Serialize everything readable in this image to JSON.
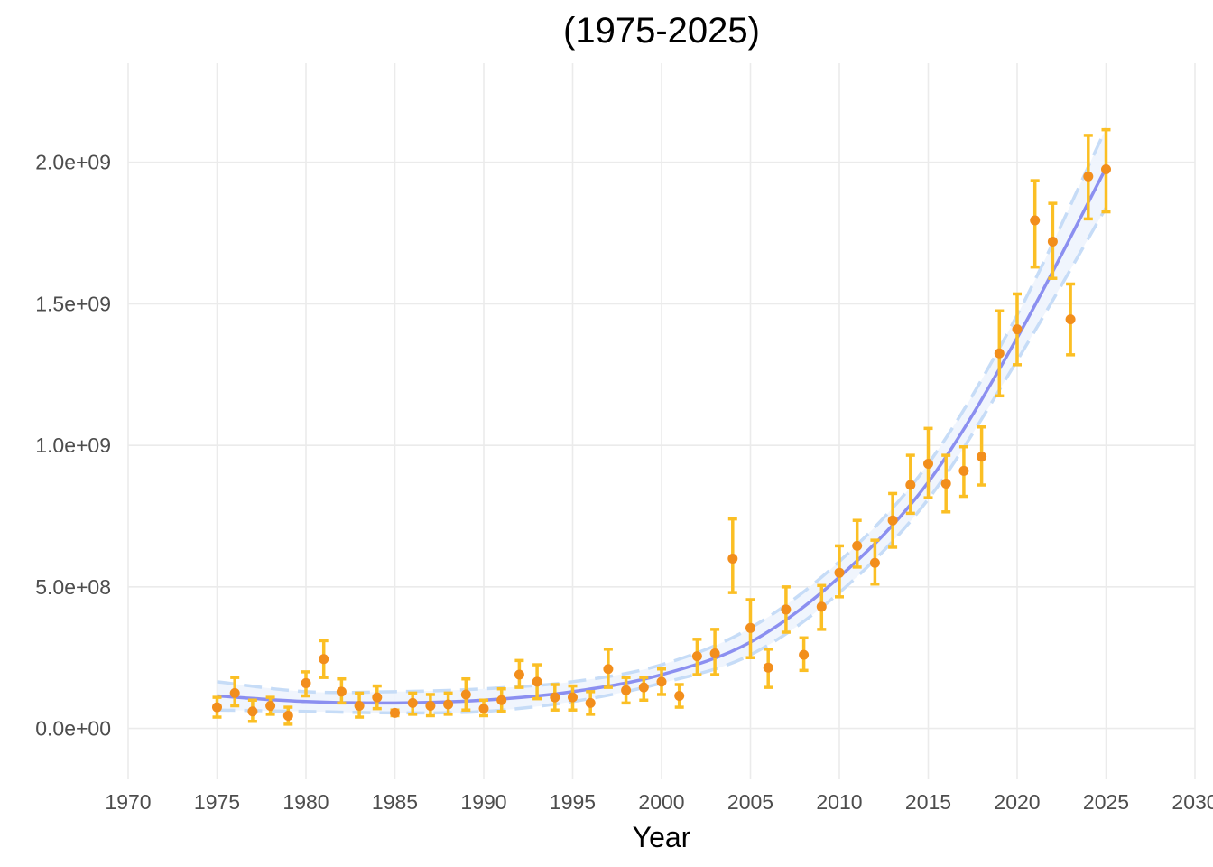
{
  "chart_data": {
    "type": "scatter",
    "title": "(1975-2025)",
    "xlabel": "Year",
    "ylabel": "",
    "xlim": [
      1970,
      2030
    ],
    "ylim": [
      -180000000.0,
      2350000000.0
    ],
    "x_ticks": [
      1970,
      1975,
      1980,
      1985,
      1990,
      1995,
      2000,
      2005,
      2010,
      2015,
      2020,
      2025,
      2030
    ],
    "x_tick_labels": [
      "1970",
      "1975",
      "1980",
      "1985",
      "1990",
      "1995",
      "2000",
      "2005",
      "2010",
      "2015",
      "2020",
      "2025",
      "2030"
    ],
    "y_ticks": [
      0,
      500000000,
      1000000000,
      1500000000,
      2000000000
    ],
    "y_tick_labels": [
      "0.0e+00",
      "5.0e+08",
      "1.0e+09",
      "1.5e+09",
      "2.0e+09"
    ],
    "grid": true,
    "colors": {
      "points": "#f28e1c",
      "error_bars": "#fbbf24",
      "fit_line": "#8b8ff0",
      "confidence_band": "#eef4fd",
      "band_edges": "#c6dcf7"
    },
    "observations": {
      "x": [
        1975,
        1976,
        1977,
        1978,
        1979,
        1980,
        1981,
        1982,
        1983,
        1984,
        1985,
        1986,
        1987,
        1988,
        1989,
        1990,
        1991,
        1992,
        1993,
        1994,
        1995,
        1996,
        1997,
        1998,
        1999,
        2000,
        2001,
        2002,
        2003,
        2004,
        2005,
        2006,
        2007,
        2008,
        2009,
        2010,
        2011,
        2012,
        2013,
        2014,
        2015,
        2016,
        2017,
        2018,
        2019,
        2020,
        2021,
        2022,
        2023,
        2024,
        2025
      ],
      "y": [
        75000000,
        125000000,
        60000000,
        80000000,
        45000000,
        160000000,
        245000000,
        130000000,
        80000000,
        110000000,
        55000000,
        90000000,
        80000000,
        85000000,
        120000000,
        70000000,
        100000000,
        190000000,
        165000000,
        110000000,
        110000000,
        90000000,
        210000000,
        135000000,
        145000000,
        165000000,
        115000000,
        255000000,
        265000000,
        600000000,
        355000000,
        215000000,
        420000000,
        260000000,
        430000000,
        550000000,
        645000000,
        585000000,
        735000000,
        860000000,
        935000000,
        865000000,
        910000000,
        960000000,
        1325000000,
        1410000000,
        1795000000,
        1720000000,
        1445000000,
        1950000000,
        1975000000
      ],
      "err_low": [
        40000000,
        80000000,
        25000000,
        50000000,
        15000000,
        115000000,
        180000000,
        90000000,
        40000000,
        70000000,
        45000000,
        50000000,
        45000000,
        50000000,
        65000000,
        45000000,
        60000000,
        145000000,
        105000000,
        65000000,
        65000000,
        50000000,
        145000000,
        90000000,
        100000000,
        120000000,
        75000000,
        190000000,
        190000000,
        480000000,
        250000000,
        145000000,
        340000000,
        205000000,
        350000000,
        465000000,
        570000000,
        510000000,
        640000000,
        760000000,
        815000000,
        765000000,
        820000000,
        860000000,
        1175000000,
        1285000000,
        1630000000,
        1590000000,
        1320000000,
        1800000000,
        1825000000
      ],
      "err_high": [
        110000000,
        180000000,
        100000000,
        110000000,
        75000000,
        200000000,
        310000000,
        175000000,
        125000000,
        150000000,
        65000000,
        125000000,
        120000000,
        125000000,
        175000000,
        100000000,
        140000000,
        240000000,
        225000000,
        155000000,
        150000000,
        130000000,
        280000000,
        180000000,
        180000000,
        210000000,
        155000000,
        315000000,
        350000000,
        740000000,
        455000000,
        280000000,
        500000000,
        320000000,
        505000000,
        645000000,
        735000000,
        665000000,
        830000000,
        965000000,
        1060000000,
        965000000,
        995000000,
        1065000000,
        1475000000,
        1535000000,
        1935000000,
        1855000000,
        1570000000,
        2095000000,
        2115000000
      ]
    },
    "fit": {
      "x": [
        1975,
        1980,
        1985,
        1990,
        1995,
        2000,
        2005,
        2010,
        2015,
        2020,
        2025
      ],
      "y": [
        115000000,
        95000000,
        90000000,
        100000000,
        130000000,
        190000000,
        305000000,
        535000000,
        870000000,
        1380000000,
        1980000000
      ],
      "lower": [
        65000000,
        60000000,
        55000000,
        60000000,
        95000000,
        160000000,
        260000000,
        480000000,
        810000000,
        1300000000,
        1840000000
      ],
      "upper": [
        165000000,
        130000000,
        130000000,
        140000000,
        165000000,
        225000000,
        355000000,
        590000000,
        935000000,
        1460000000,
        2120000000
      ]
    }
  }
}
